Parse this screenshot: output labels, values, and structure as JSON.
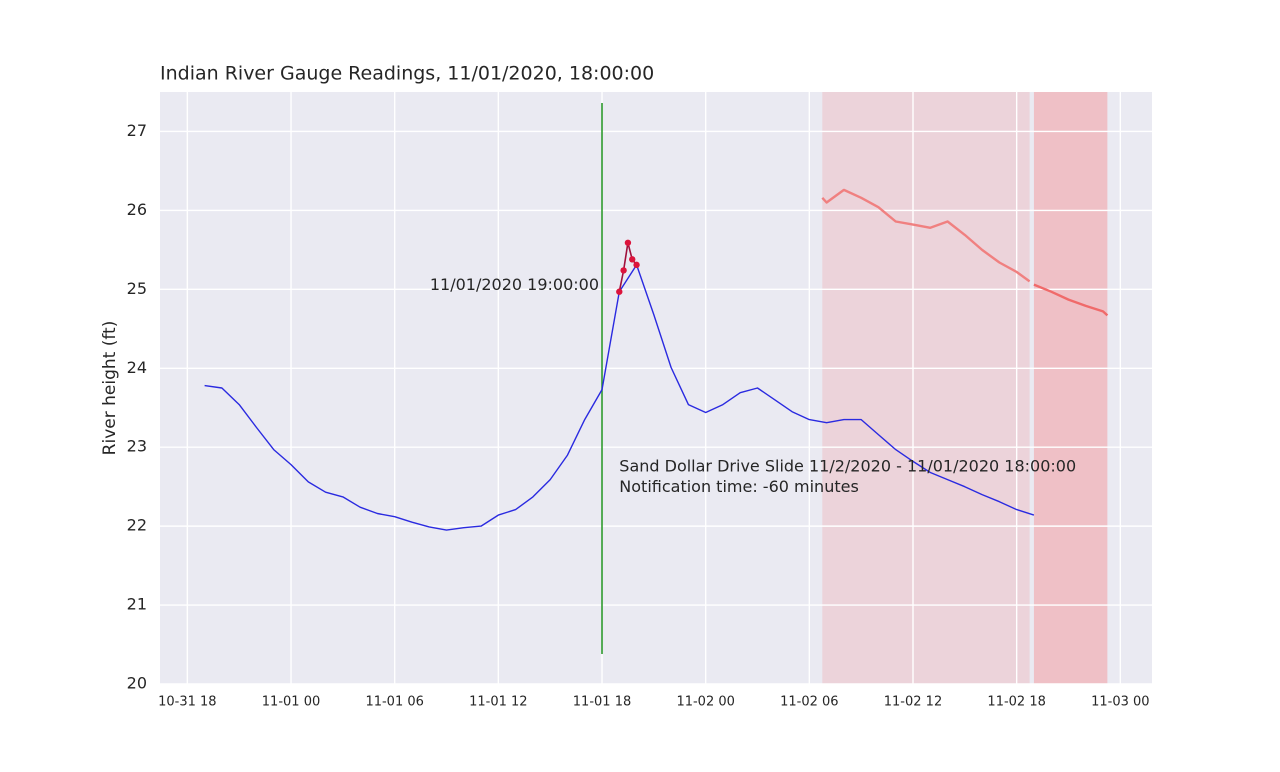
{
  "chart_data": {
    "type": "line",
    "title": "Indian River Gauge Readings, 11/01/2020, 18:00:00",
    "y_label": "River height (ft)",
    "xlim": [
      "10-31 16:25",
      "11-03 01:50"
    ],
    "ylim": [
      20,
      27.5
    ],
    "xticks": [
      "10-31 18",
      "11-01 00",
      "11-01 06",
      "11-01 12",
      "11-01 18",
      "11-02 00",
      "11-02 06",
      "11-02 12",
      "11-02 18",
      "11-03 00"
    ],
    "yticks": [
      20,
      21,
      22,
      23,
      24,
      25,
      26,
      27
    ],
    "grid": true,
    "series": [
      {
        "color": "#2a2ae0",
        "width": 1.4,
        "x": [
          "10-31 19",
          "10-31 20",
          "10-31 21",
          "10-31 22",
          "10-31 23",
          "11-01 00",
          "11-01 01",
          "11-01 02",
          "11-01 03",
          "11-01 04",
          "11-01 05",
          "11-01 06",
          "11-01 07",
          "11-01 08",
          "11-01 09",
          "11-01 10",
          "11-01 11",
          "11-01 12",
          "11-01 13",
          "11-01 14",
          "11-01 15",
          "11-01 16",
          "11-01 17",
          "11-01 18",
          "11-01 19",
          "11-01 20",
          "11-01 21",
          "11-01 22",
          "11-01 23",
          "11-02 00",
          "11-02 01",
          "11-02 02",
          "11-02 03",
          "11-02 04",
          "11-02 05",
          "11-02 06",
          "11-02 07",
          "11-02 08",
          "11-02 09",
          "11-02 10",
          "11-02 11",
          "11-02 12",
          "11-02 13",
          "11-02 14",
          "11-02 15",
          "11-02 16",
          "11-02 17",
          "11-02 18",
          "11-02 19"
        ],
        "values": [
          23.78,
          23.75,
          23.54,
          23.25,
          22.97,
          22.78,
          22.56,
          22.43,
          22.37,
          22.24,
          22.16,
          22.12,
          22.05,
          21.99,
          21.95,
          21.98,
          22.0,
          22.14,
          22.21,
          22.37,
          22.59,
          22.9,
          23.35,
          23.73,
          24.97,
          25.31,
          24.68,
          24.01,
          23.54,
          23.44,
          23.54,
          23.69,
          23.75,
          23.6,
          23.45,
          23.35,
          23.31,
          23.35,
          23.35,
          23.16,
          22.97,
          22.82,
          22.68,
          22.59,
          22.5,
          22.4,
          22.31,
          22.21,
          22.14
        ]
      },
      {
        "color": "#f08080",
        "width": 2.4,
        "x": [
          "11-02 06:45",
          "11-02 07",
          "11-02 08",
          "11-02 09",
          "11-02 10",
          "11-02 11",
          "11-02 12",
          "11-02 13",
          "11-02 14",
          "11-02 15",
          "11-02 16",
          "11-02 17",
          "11-02 18",
          "11-02 18:45"
        ],
        "values": [
          26.16,
          26.1,
          26.26,
          26.16,
          26.04,
          25.86,
          25.82,
          25.78,
          25.86,
          25.69,
          25.5,
          25.34,
          25.22,
          25.1
        ]
      },
      {
        "color": "#f06a6a",
        "width": 2.4,
        "x": [
          "11-02 19",
          "11-02 20",
          "11-02 21",
          "11-02 22",
          "11-02 23",
          "11-02 23:15"
        ],
        "values": [
          25.06,
          24.97,
          24.87,
          24.79,
          24.72,
          24.67
        ]
      },
      {
        "color": "#a0103c",
        "width": 1.6,
        "marker_color": "#dc143c",
        "markers": true,
        "x": [
          "11-01 19:00",
          "11-01 19:15",
          "11-01 19:30",
          "11-01 19:45",
          "11-01 20:00"
        ],
        "values": [
          24.97,
          25.24,
          25.59,
          25.38,
          25.31
        ]
      }
    ],
    "shaded_regions": [
      {
        "start": "11-02 06:45",
        "end": "11-02 18:45",
        "color": "#eccfd6"
      },
      {
        "start": "11-02 19:00",
        "end": "11-02 23:15",
        "color": "#f0b8be"
      }
    ],
    "vline": {
      "x": "11-01 18",
      "ymin": 20.38,
      "ymax": 27.36,
      "color": "#2e9a2e"
    },
    "annotations": [
      {
        "text": "11/01/2020 19:00:00",
        "x": "11-01 18",
        "y": 25.05
      },
      {
        "text": "Sand Dollar Drive Slide 11/2/2020 - 11/01/2020 18:00:00",
        "x": "11-01 19",
        "y": 22.75
      },
      {
        "text": "Notification time: -60 minutes",
        "x": "11-01 19",
        "y": 22.49
      }
    ]
  }
}
